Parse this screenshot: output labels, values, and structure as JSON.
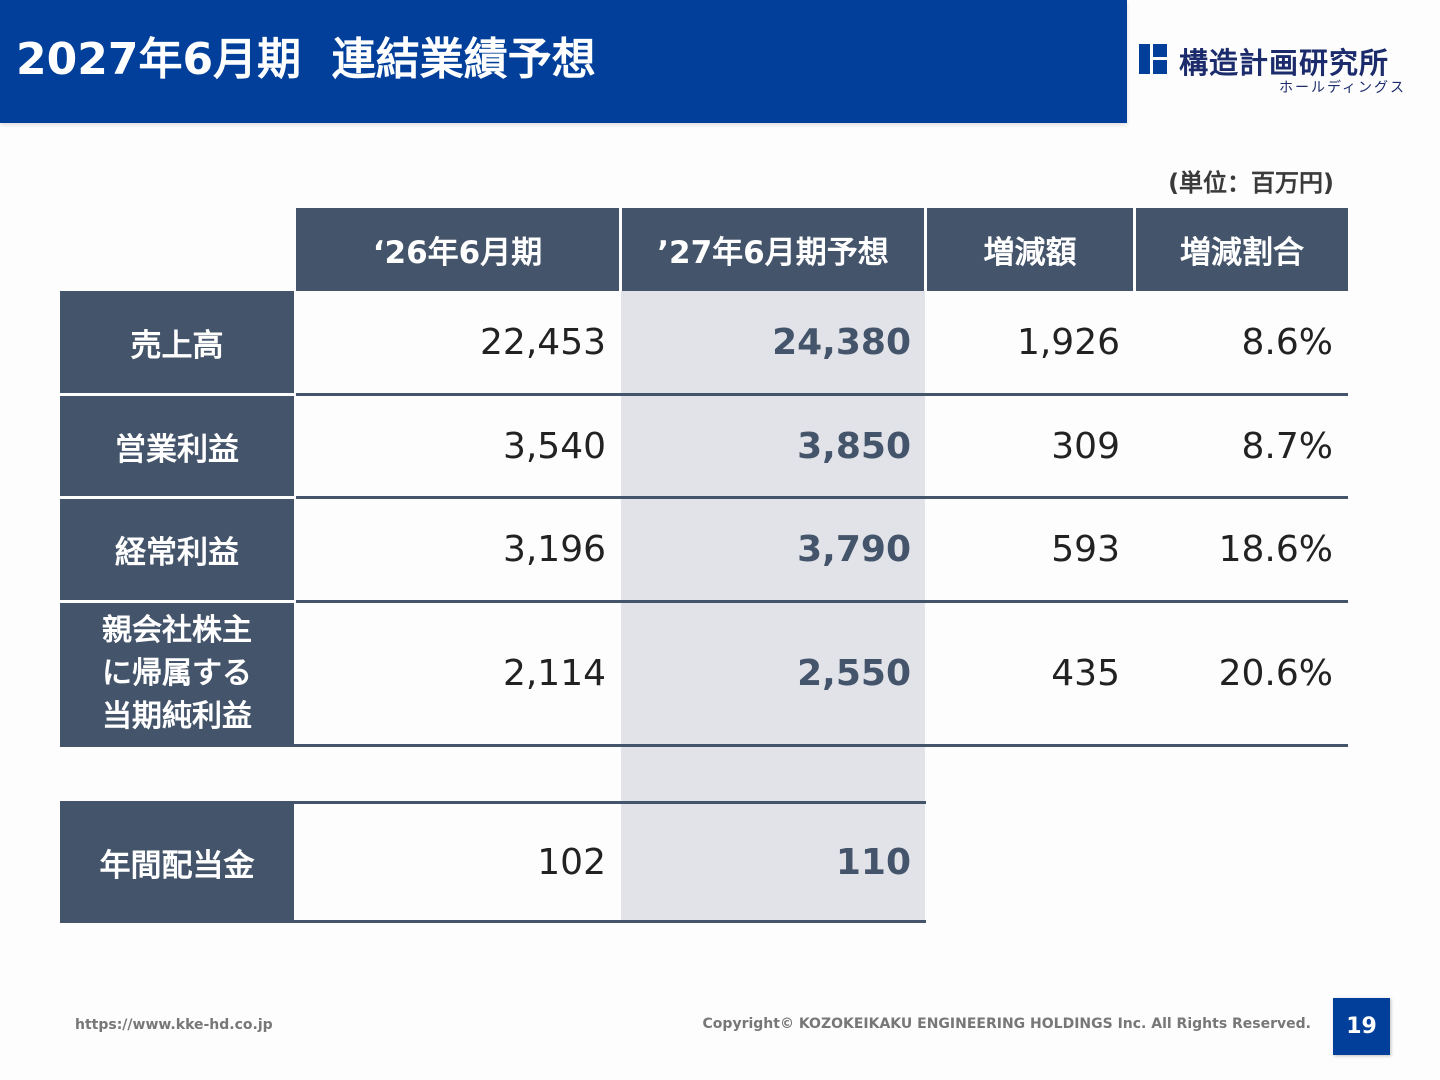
{
  "title": {
    "period": "2027年6月期",
    "subject": "連結業績予想"
  },
  "logo": {
    "name": "構造計画研究所",
    "sub": "ホールディングス"
  },
  "unit_label": "(単位：百万円)",
  "table": {
    "columns": [
      "‘26年6月期",
      "’27年6月期予想",
      "増減額",
      "増減割合"
    ],
    "rows": [
      {
        "label": "売上高",
        "prev": "22,453",
        "forecast": "24,380",
        "change": "1,926",
        "rate": "8.6%"
      },
      {
        "label": "営業利益",
        "prev": "3,540",
        "forecast": "3,850",
        "change": "309",
        "rate": "8.7%"
      },
      {
        "label": "経常利益",
        "prev": "3,196",
        "forecast": "3,790",
        "change": "593",
        "rate": "18.6%"
      },
      {
        "label_lines": [
          "親会社株主",
          "に帰属する",
          "当期純利益"
        ],
        "prev": "2,114",
        "forecast": "2,550",
        "change": "435",
        "rate": "20.6%"
      }
    ],
    "dividend": {
      "label": "年間配当金",
      "prev": "102",
      "forecast": "110"
    }
  },
  "footer": {
    "url": "https://www.kke-hd.co.jp",
    "copyright": "Copyright© KOZOKEIKAKU ENGINEERING HOLDINGS Inc. All Rights Reserved.",
    "page": "19"
  },
  "colors": {
    "title_bar": "#013f9a",
    "header_fill": "#44546a",
    "forecast_fill": "#e1e3e8"
  }
}
